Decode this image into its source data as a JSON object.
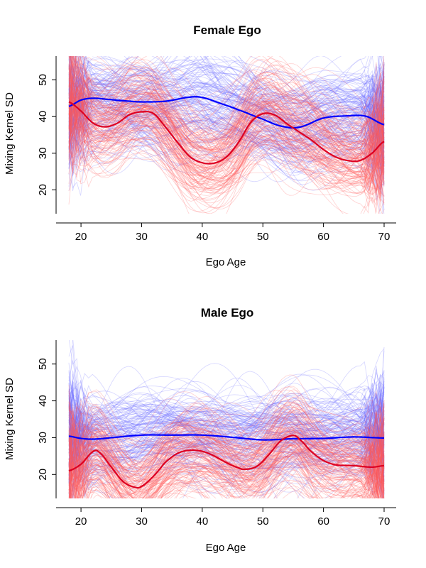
{
  "chart_data": [
    {
      "type": "line",
      "title": "Female Ego",
      "xlabel": "Ego Age",
      "ylabel": "Mixing Kernel SD",
      "xlim": [
        18,
        70
      ],
      "ylim": [
        13.5,
        56.5
      ],
      "xticks": [
        20,
        30,
        40,
        50,
        60,
        70
      ],
      "yticks": [
        20,
        30,
        40,
        50
      ],
      "colors": {
        "blue": "#0000ff",
        "red": "#dd0022",
        "blue_band": "#6a6aff",
        "red_band": "#ff5a5a"
      },
      "series": [
        {
          "color": "blue",
          "x": [
            18,
            20,
            22,
            25,
            28,
            30,
            34,
            38,
            40,
            43,
            46,
            50,
            53,
            56,
            60,
            64,
            67,
            70
          ],
          "y": [
            42.8,
            44.5,
            45.0,
            44.6,
            44.2,
            44.0,
            44.2,
            45.3,
            45.2,
            43.6,
            41.8,
            39.3,
            37.4,
            37.1,
            39.6,
            40.2,
            40.1,
            37.8
          ]
        },
        {
          "color": "red",
          "x": [
            18,
            20,
            22,
            24,
            26,
            28,
            30,
            32,
            34,
            36,
            38,
            40,
            42,
            44,
            46,
            48,
            50,
            52,
            54,
            56,
            58,
            60,
            62,
            64,
            66,
            68,
            70
          ],
          "y": [
            44.0,
            41.5,
            38.2,
            37.2,
            38.2,
            40.5,
            41.3,
            40.8,
            37.0,
            32.8,
            29.0,
            27.4,
            27.3,
            29.0,
            33.0,
            38.4,
            40.8,
            40.4,
            38.0,
            35.8,
            33.6,
            31.0,
            29.0,
            28.0,
            28.0,
            30.0,
            33.2
          ]
        }
      ]
    },
    {
      "type": "line",
      "title": "Male Ego",
      "xlabel": "Ego Age",
      "ylabel": "Mixing Kernel SD",
      "xlim": [
        18,
        70
      ],
      "ylim": [
        13.5,
        56.5
      ],
      "xticks": [
        20,
        30,
        40,
        50,
        60,
        70
      ],
      "yticks": [
        20,
        30,
        40,
        50
      ],
      "colors": {
        "blue": "#0000ff",
        "red": "#dd0022",
        "blue_band": "#6a6aff",
        "red_band": "#ff5a5a"
      },
      "series": [
        {
          "color": "blue",
          "x": [
            18,
            20,
            22,
            25,
            30,
            35,
            40,
            45,
            50,
            55,
            60,
            65,
            70
          ],
          "y": [
            30.4,
            29.8,
            29.6,
            30.0,
            30.7,
            30.7,
            30.7,
            30.1,
            29.4,
            29.7,
            29.8,
            30.2,
            29.9
          ]
        },
        {
          "color": "red",
          "x": [
            18,
            20,
            22,
            23,
            25,
            27,
            29,
            30,
            32,
            34,
            36,
            38,
            40,
            42,
            44,
            46,
            47,
            49,
            51,
            53,
            55,
            56,
            58,
            60,
            62,
            65,
            68,
            70
          ],
          "y": [
            21.0,
            22.8,
            26.2,
            26.0,
            22.0,
            18.0,
            16.5,
            16.8,
            19.6,
            23.4,
            25.8,
            26.6,
            26.3,
            25.0,
            23.2,
            21.8,
            21.4,
            22.2,
            25.4,
            29.2,
            30.6,
            29.6,
            26.2,
            23.8,
            22.6,
            22.4,
            22.0,
            22.4
          ]
        }
      ]
    }
  ]
}
